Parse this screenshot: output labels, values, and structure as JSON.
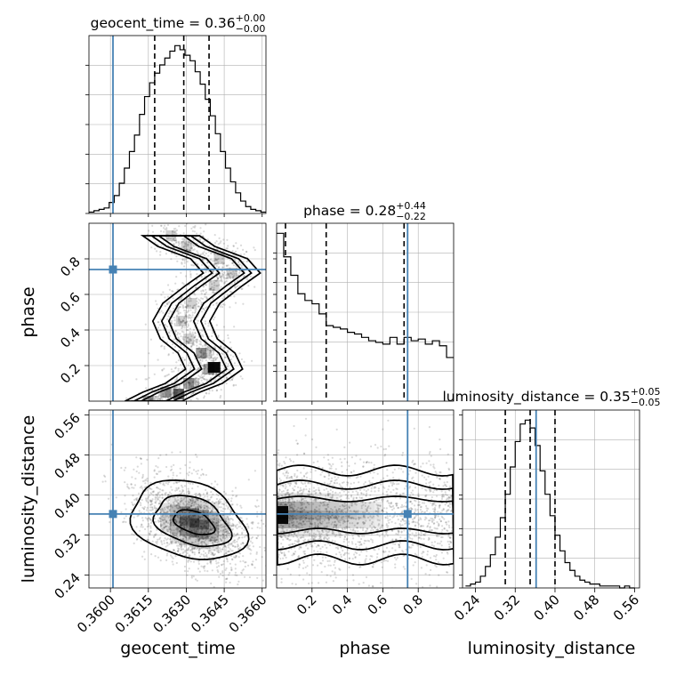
{
  "chart_data": {
    "type": "corner",
    "parameters": [
      "geocent_time",
      "phase",
      "luminosity_distance"
    ],
    "true_values": {
      "geocent_time": 0.3601,
      "phase": 0.74,
      "luminosity_distance": 0.362
    },
    "titles": [
      {
        "param": "geocent_time",
        "text": "geocent_time = 0.36",
        "sup": "+0.00",
        "sub": "−0.00"
      },
      {
        "param": "phase",
        "text": "phase = 0.28",
        "sup": "+0.44",
        "sub": "−0.22"
      },
      {
        "param": "luminosity_distance",
        "text": "luminosity_distance = 0.35",
        "sup": "+0.05",
        "sub": "−0.05"
      }
    ],
    "axis_labels": {
      "x": [
        "geocent_time",
        "phase",
        "luminosity_distance"
      ],
      "y": [
        "phase",
        "luminosity_distance"
      ]
    },
    "ranges": {
      "geocent_time": [
        0.35915,
        0.36615
      ],
      "phase": [
        0.0,
        1.0
      ],
      "luminosity_distance": [
        0.214,
        0.57
      ]
    },
    "ticks": {
      "geocent_time": {
        "values": [
          0.36,
          0.3615,
          0.363,
          0.3645,
          0.366
        ],
        "labels": [
          "0.3600",
          "0.3615",
          "0.3630",
          "0.3645",
          "0.3660"
        ]
      },
      "phase_x": {
        "values": [
          0.2,
          0.4,
          0.6,
          0.8
        ],
        "labels": [
          "0.2",
          "0.4",
          "0.6",
          "0.8"
        ]
      },
      "phase_y": {
        "values": [
          0.2,
          0.4,
          0.6,
          0.8
        ],
        "labels": [
          "0.2",
          "0.4",
          "0.6",
          "0.8"
        ]
      },
      "luminosity_distance": {
        "values": [
          0.24,
          0.32,
          0.4,
          0.48,
          0.56
        ],
        "labels": [
          "0.24",
          "0.32",
          "0.40",
          "0.48",
          "0.56"
        ]
      }
    },
    "histograms": {
      "geocent_time": {
        "bin_edges": [
          0.35915,
          0.35935,
          0.35955,
          0.35975,
          0.35995,
          0.36015,
          0.36035,
          0.36055,
          0.36075,
          0.36095,
          0.36115,
          0.36135,
          0.36155,
          0.36175,
          0.36195,
          0.36215,
          0.36235,
          0.36255,
          0.36275,
          0.36295,
          0.36315,
          0.36335,
          0.36355,
          0.36375,
          0.36395,
          0.36415,
          0.36435,
          0.36455,
          0.36475,
          0.36495,
          0.36515,
          0.36535,
          0.36555,
          0.36575,
          0.36595,
          0.36615
        ],
        "counts": [
          1,
          2,
          3,
          4,
          8,
          13,
          22,
          33,
          45,
          57,
          72,
          85,
          95,
          102,
          108,
          113,
          118,
          122,
          119,
          115,
          111,
          103,
          94,
          83,
          71,
          58,
          45,
          33,
          23,
          15,
          9,
          5,
          3,
          2,
          1
        ],
        "quantiles": [
          0.36175,
          0.3629,
          0.3639
        ]
      },
      "phase": {
        "bin_edges": [
          0.0,
          0.04,
          0.08,
          0.12,
          0.16,
          0.2,
          0.24,
          0.28,
          0.32,
          0.36,
          0.4,
          0.44,
          0.48,
          0.52,
          0.56,
          0.6,
          0.64,
          0.68,
          0.72,
          0.76,
          0.8,
          0.84,
          0.88,
          0.92,
          0.96,
          1.0
        ],
        "counts": [
          100,
          86,
          75,
          64,
          60,
          58,
          52,
          45,
          44,
          43,
          41,
          40,
          38,
          36,
          35,
          34,
          38,
          34,
          38,
          36,
          37,
          34,
          36,
          33,
          26
        ],
        "quantiles": [
          0.05,
          0.28,
          0.72
        ]
      },
      "luminosity_distance": {
        "bin_edges": [
          0.22,
          0.23,
          0.24,
          0.25,
          0.26,
          0.27,
          0.28,
          0.29,
          0.3,
          0.31,
          0.32,
          0.33,
          0.34,
          0.35,
          0.36,
          0.37,
          0.38,
          0.39,
          0.4,
          0.41,
          0.42,
          0.43,
          0.44,
          0.45,
          0.46,
          0.47,
          0.48,
          0.49,
          0.5,
          0.51,
          0.52,
          0.53,
          0.54,
          0.55,
          0.56
        ],
        "counts": [
          1,
          2,
          3,
          6,
          11,
          17,
          26,
          36,
          48,
          62,
          75,
          84,
          86,
          82,
          73,
          60,
          48,
          37,
          27,
          19,
          13,
          9,
          6,
          4,
          3,
          2,
          2,
          1,
          1,
          1,
          1,
          0,
          1,
          0
        ],
        "quantiles": [
          0.3,
          0.35,
          0.4
        ]
      }
    },
    "joint_2d": [
      {
        "x": "geocent_time",
        "y": "phase",
        "mode_path": [
          [
            0.3617,
            0.0
          ],
          [
            0.3624,
            0.05
          ],
          [
            0.3633,
            0.1
          ],
          [
            0.3641,
            0.18
          ],
          [
            0.3638,
            0.27
          ],
          [
            0.3631,
            0.35
          ],
          [
            0.3628,
            0.45
          ],
          [
            0.3632,
            0.55
          ],
          [
            0.3641,
            0.65
          ],
          [
            0.3648,
            0.72
          ],
          [
            0.3643,
            0.8
          ],
          [
            0.363,
            0.87
          ],
          [
            0.3624,
            0.93
          ]
        ]
      },
      {
        "x": "geocent_time",
        "y": "luminosity_distance",
        "mode": [
          0.3633,
          0.345
        ]
      },
      {
        "x": "phase",
        "y": "luminosity_distance",
        "mode": [
          0.03,
          0.36
        ]
      }
    ],
    "colors": {
      "truth": "#4682b4",
      "hist": "#000000",
      "grid": "#b0b0b0",
      "scatter": "#333333"
    },
    "grid": true
  }
}
